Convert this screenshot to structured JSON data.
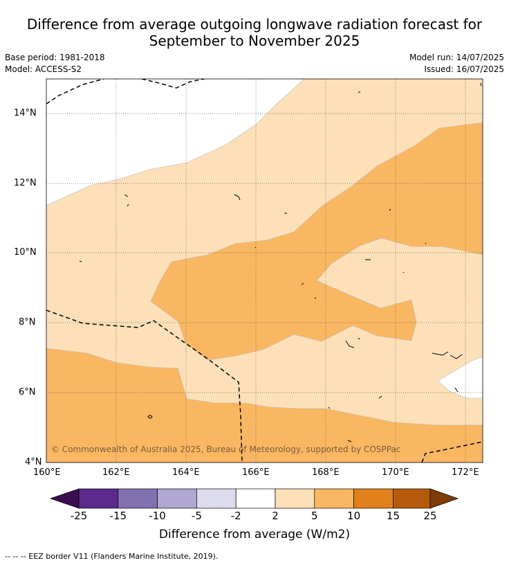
{
  "title": {
    "line1": "Difference from average outgoing longwave radiation forecast for",
    "line2": "September to November 2025"
  },
  "meta": {
    "base_period": "Base period: 1981-2018",
    "model": "Model: ACCESS-S2",
    "model_run": "Model run: 14/07/2025",
    "issued": "Issued: 16/07/2025"
  },
  "map": {
    "lon_ticks": [
      "160°E",
      "162°E",
      "164°E",
      "166°E",
      "168°E",
      "170°E",
      "172°E"
    ],
    "lat_ticks": [
      "4°N",
      "6°N",
      "8°N",
      "10°N",
      "12°N",
      "14°N"
    ],
    "copyright": "© Commonwealth of Australia 2025, Bureau of Meteorology, supported by COSPPac"
  },
  "colorbar": {
    "labels": [
      "-25",
      "-15",
      "-10",
      "-5",
      "-2",
      "2",
      "5",
      "10",
      "15",
      "25"
    ],
    "title": "Difference from average (W/m2)",
    "colors": [
      "#3b0f4f",
      "#5b2a8c",
      "#8271b1",
      "#b0a7d2",
      "#dcdcee",
      "#ffffff",
      "#fde0b8",
      "#fab761",
      "#e0811c",
      "#b45a0a",
      "#7f3b08"
    ]
  },
  "footer": {
    "legend": "--  --  -- EEZ border V11 (Flanders Marine Institute, 2019)."
  }
}
